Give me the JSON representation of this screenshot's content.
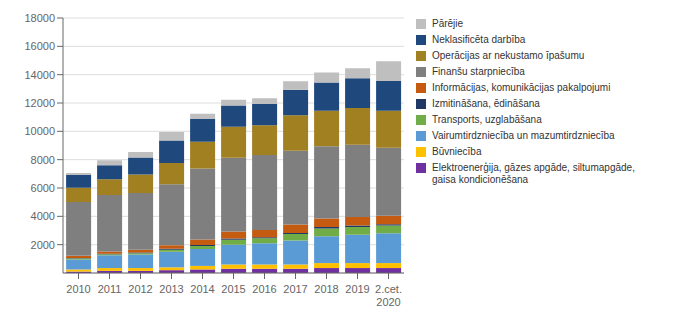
{
  "chart_data": {
    "type": "bar",
    "stacked": true,
    "categories": [
      "2010",
      "2011",
      "2012",
      "2013",
      "2014",
      "2015",
      "2016",
      "2017",
      "2018",
      "2019",
      "2.cet.\n2020"
    ],
    "series": [
      {
        "name": "Elektroenerģija, gāzes apgāde, siltumapgāde,\ngaisa kondicionēšana",
        "color": "#7030A0",
        "values": [
          100,
          150,
          150,
          200,
          250,
          300,
          300,
          300,
          350,
          350,
          350
        ]
      },
      {
        "name": "Būvniecība",
        "color": "#FFC000",
        "values": [
          150,
          200,
          200,
          200,
          250,
          300,
          300,
          300,
          350,
          350,
          350
        ]
      },
      {
        "name": "Vairumtirdzniecība un mazumtirdzniecība",
        "color": "#5B9BD5",
        "values": [
          700,
          900,
          950,
          1100,
          1200,
          1400,
          1500,
          1700,
          1900,
          2000,
          2100
        ]
      },
      {
        "name": "Transports, uzglabāšana",
        "color": "#70AD47",
        "values": [
          80,
          80,
          100,
          150,
          200,
          350,
          350,
          450,
          550,
          550,
          550
        ]
      },
      {
        "name": "Izmitināšana, ēdināšana",
        "color": "#1F3864",
        "values": [
          30,
          30,
          50,
          60,
          70,
          80,
          80,
          80,
          100,
          100,
          100
        ]
      },
      {
        "name": "Informācijas, komunikācijas pakalpojumi",
        "color": "#C55A11",
        "values": [
          150,
          150,
          200,
          250,
          400,
          500,
          500,
          600,
          600,
          600,
          600
        ]
      },
      {
        "name": "Finanšu starpniecība",
        "color": "#7F7F7F",
        "values": [
          3800,
          4000,
          4000,
          4300,
          5000,
          5200,
          5300,
          5200,
          5100,
          5100,
          4800
        ]
      },
      {
        "name": "Operācijas ar nekustamo īpašumu",
        "color": "#A08020",
        "values": [
          1000,
          1100,
          1300,
          1500,
          1900,
          2200,
          2100,
          2500,
          2500,
          2600,
          2600
        ]
      },
      {
        "name": "Neklasificēta darbība",
        "color": "#1F497D",
        "values": [
          900,
          1000,
          1200,
          1600,
          1600,
          1500,
          1500,
          1800,
          2000,
          2100,
          2100
        ]
      },
      {
        "name": "Pārējie",
        "color": "#BFBFBF",
        "values": [
          150,
          350,
          400,
          600,
          380,
          400,
          400,
          600,
          700,
          700,
          1400
        ]
      }
    ],
    "ylim": [
      0,
      18000
    ],
    "yticks": [
      2000,
      4000,
      6000,
      8000,
      10000,
      12000,
      14000,
      16000,
      18000
    ],
    "grid": true,
    "legend": "right"
  }
}
